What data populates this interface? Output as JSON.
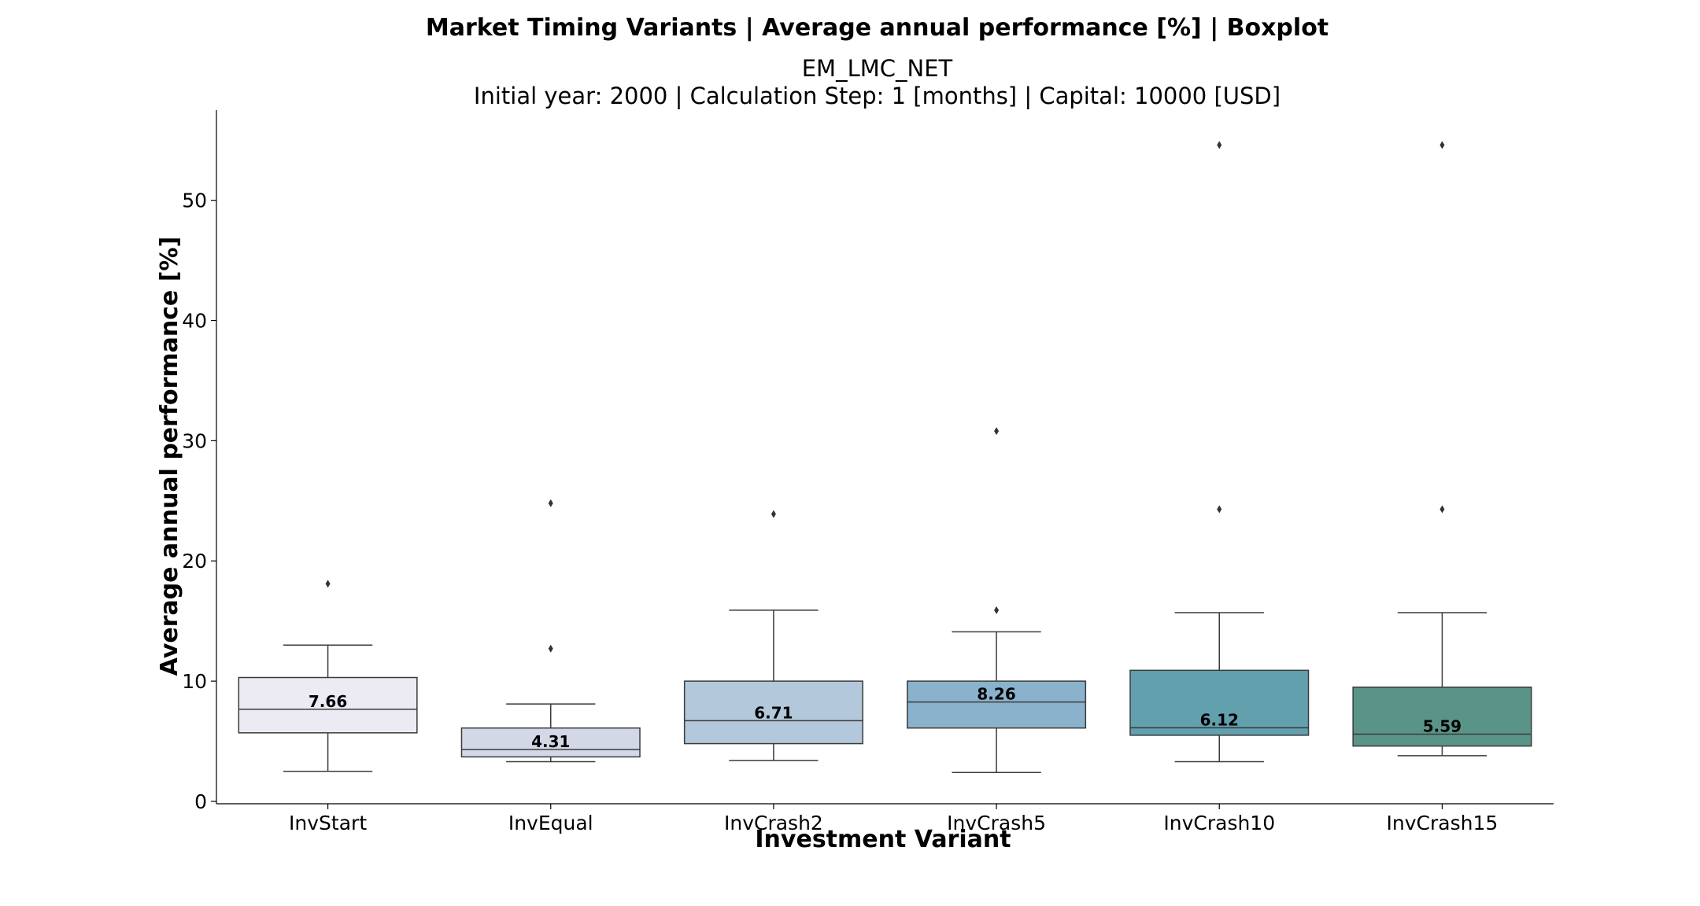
{
  "chart_data": {
    "type": "boxplot",
    "title": "Market Timing Variants | Average annual performance [%] | Boxplot",
    "subtitle_line1": "EM_LMC_NET",
    "subtitle_line2": "Initial year: 2000 | Calculation Step: 1 [months] | Capital: 10000 [USD]",
    "xlabel": "Investment Variant",
    "ylabel": "Average annual performance [%]",
    "ylim": [
      -0.2,
      57.5
    ],
    "yticks": [
      0,
      10,
      20,
      30,
      40,
      50
    ],
    "grid": false,
    "categories": [
      "InvStart",
      "InvEqual",
      "InvCrash2",
      "InvCrash5",
      "InvCrash10",
      "InvCrash15"
    ],
    "boxes": [
      {
        "category": "InvStart",
        "whisker_low": 2.5,
        "q1": 5.7,
        "median": 7.66,
        "q3": 10.3,
        "whisker_high": 13.0,
        "outliers": [
          18.1
        ],
        "median_label": "7.66",
        "color": "#eceaf3"
      },
      {
        "category": "InvEqual",
        "whisker_low": 3.3,
        "q1": 3.7,
        "median": 4.31,
        "q3": 6.1,
        "whisker_high": 8.1,
        "outliers": [
          12.7,
          24.8
        ],
        "median_label": "4.31",
        "color": "#d3d8e7"
      },
      {
        "category": "InvCrash2",
        "whisker_low": 3.4,
        "q1": 4.8,
        "median": 6.71,
        "q3": 10.0,
        "whisker_high": 15.9,
        "outliers": [
          23.9
        ],
        "median_label": "6.71",
        "color": "#b3c9db"
      },
      {
        "category": "InvCrash5",
        "whisker_low": 2.4,
        "q1": 6.1,
        "median": 8.26,
        "q3": 10.0,
        "whisker_high": 14.1,
        "outliers": [
          15.9,
          30.8
        ],
        "median_label": "8.26",
        "color": "#8ab2cc"
      },
      {
        "category": "InvCrash10",
        "whisker_low": 3.3,
        "q1": 5.5,
        "median": 6.12,
        "q3": 10.9,
        "whisker_high": 15.7,
        "outliers": [
          24.3,
          54.6
        ],
        "median_label": "6.12",
        "color": "#62a0ae"
      },
      {
        "category": "InvCrash15",
        "whisker_low": 3.8,
        "q1": 4.6,
        "median": 5.59,
        "q3": 9.5,
        "whisker_high": 15.7,
        "outliers": [
          24.3,
          54.6
        ],
        "median_label": "5.59",
        "color": "#5a9488"
      }
    ]
  }
}
